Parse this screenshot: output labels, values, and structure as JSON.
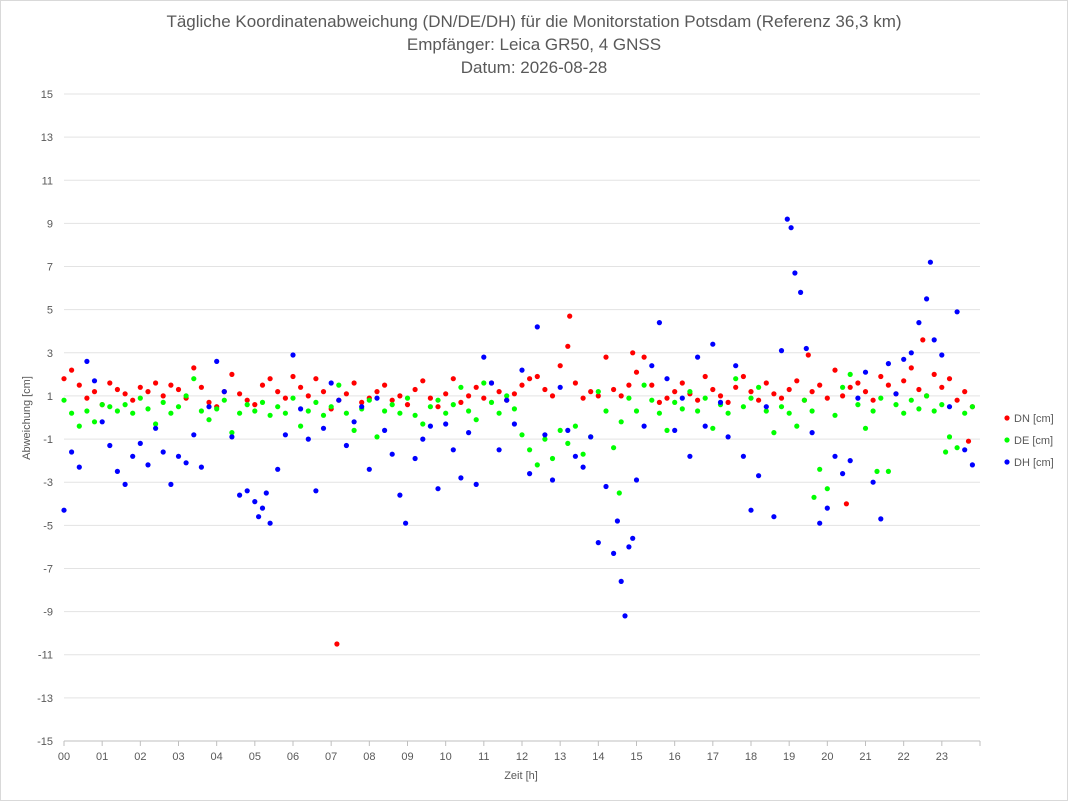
{
  "chart_data": {
    "type": "scatter",
    "title_lines": [
      "Tägliche Koordinatenabweichung (DN/DE/DH) für die Monitorstation Potsdam (Referenz 36,3 km)",
      "Empfänger: Leica GR50, 4 GNSS",
      "Datum: 2026-08-28"
    ],
    "xlabel": "Zeit [h]",
    "ylabel": "Abweichung [cm]",
    "x_tick_labels": [
      "00",
      "01",
      "02",
      "03",
      "04",
      "05",
      "06",
      "07",
      "08",
      "09",
      "10",
      "11",
      "12",
      "13",
      "14",
      "15",
      "16",
      "17",
      "18",
      "19",
      "20",
      "21",
      "22",
      "23"
    ],
    "xlim": [
      0,
      24
    ],
    "ylim": [
      -15,
      15
    ],
    "y_ticks": [
      15,
      13,
      11,
      9,
      7,
      5,
      3,
      1,
      -1,
      -3,
      -5,
      -7,
      -9,
      -11,
      -13,
      -15
    ],
    "grid": "horizontal",
    "legend_position": "right",
    "series": [
      {
        "name": "DN [cm]",
        "color": "#ff0000",
        "x": [
          0.0,
          0.2,
          0.4,
          0.6,
          0.8,
          1.0,
          1.2,
          1.4,
          1.6,
          1.8,
          2.0,
          2.2,
          2.4,
          2.6,
          2.8,
          3.0,
          3.2,
          3.4,
          3.6,
          3.8,
          4.0,
          4.2,
          4.4,
          4.6,
          4.8,
          5.0,
          5.2,
          5.4,
          5.6,
          5.8,
          6.0,
          6.2,
          6.4,
          6.6,
          6.8,
          7.0,
          7.2,
          7.4,
          7.6,
          7.8,
          8.0,
          8.2,
          8.4,
          8.6,
          8.8,
          9.0,
          9.2,
          9.4,
          9.6,
          9.8,
          10.0,
          10.2,
          10.4,
          10.6,
          10.8,
          11.0,
          11.2,
          11.4,
          11.6,
          11.8,
          12.0,
          12.2,
          12.4,
          12.6,
          12.8,
          13.0,
          13.2,
          13.4,
          13.6,
          13.8,
          14.0,
          14.2,
          14.4,
          14.6,
          14.8,
          15.0,
          15.2,
          15.4,
          15.6,
          15.8,
          16.0,
          16.2,
          16.4,
          16.6,
          16.8,
          17.0,
          17.2,
          17.4,
          17.6,
          17.8,
          18.0,
          18.2,
          18.4,
          18.6,
          18.8,
          19.0,
          19.2,
          19.4,
          19.6,
          19.8,
          20.0,
          20.2,
          20.4,
          20.6,
          20.8,
          21.0,
          21.2,
          21.4,
          21.6,
          21.8,
          22.0,
          22.2,
          22.4,
          22.6,
          22.8,
          23.0,
          23.2,
          23.4,
          23.6,
          23.8,
          7.15,
          13.25,
          14.9,
          19.5,
          20.5,
          22.5,
          23.7
        ],
        "y": [
          1.8,
          2.2,
          1.5,
          0.9,
          1.2,
          0.6,
          1.6,
          1.3,
          1.1,
          0.8,
          1.4,
          1.2,
          1.6,
          1.0,
          1.5,
          1.3,
          0.9,
          2.3,
          1.4,
          0.7,
          0.5,
          1.2,
          2.0,
          1.1,
          0.8,
          0.6,
          1.5,
          1.8,
          1.2,
          0.9,
          1.9,
          1.4,
          1.0,
          1.8,
          1.2,
          0.4,
          0.8,
          1.1,
          1.6,
          0.7,
          0.9,
          1.2,
          1.5,
          0.8,
          1.0,
          0.6,
          1.3,
          1.7,
          0.9,
          0.5,
          1.1,
          1.8,
          0.7,
          1.0,
          1.4,
          0.9,
          1.6,
          1.2,
          0.8,
          1.1,
          1.5,
          1.8,
          1.9,
          1.3,
          1.0,
          2.4,
          3.3,
          1.6,
          0.9,
          1.2,
          1.0,
          2.8,
          1.3,
          1.0,
          1.5,
          2.1,
          2.8,
          1.5,
          0.7,
          0.9,
          1.2,
          1.6,
          1.1,
          0.8,
          1.9,
          1.3,
          1.0,
          0.7,
          1.4,
          1.9,
          1.2,
          0.8,
          1.6,
          1.1,
          0.9,
          1.3,
          1.7,
          0.8,
          1.2,
          1.5,
          0.9,
          2.2,
          1.0,
          1.4,
          1.6,
          1.2,
          0.8,
          1.9,
          1.5,
          1.1,
          1.7,
          2.3,
          1.3,
          1.0,
          2.0,
          1.4,
          1.8,
          0.8,
          1.2,
          0.5,
          -10.5,
          4.7,
          3.0,
          2.9,
          -4.0,
          3.6,
          -1.1
        ]
      },
      {
        "name": "DE [cm]",
        "color": "#00ff00",
        "x": [
          0.0,
          0.2,
          0.4,
          0.6,
          0.8,
          1.0,
          1.2,
          1.4,
          1.6,
          1.8,
          2.0,
          2.2,
          2.4,
          2.6,
          2.8,
          3.0,
          3.2,
          3.4,
          3.6,
          3.8,
          4.0,
          4.2,
          4.4,
          4.6,
          4.8,
          5.0,
          5.2,
          5.4,
          5.6,
          5.8,
          6.0,
          6.2,
          6.4,
          6.6,
          6.8,
          7.0,
          7.2,
          7.4,
          7.6,
          7.8,
          8.0,
          8.2,
          8.4,
          8.6,
          8.8,
          9.0,
          9.2,
          9.4,
          9.6,
          9.8,
          10.0,
          10.2,
          10.4,
          10.6,
          10.8,
          11.0,
          11.2,
          11.4,
          11.6,
          11.8,
          12.0,
          12.2,
          12.4,
          12.6,
          12.8,
          13.0,
          13.2,
          13.4,
          13.6,
          13.8,
          14.0,
          14.2,
          14.4,
          14.6,
          14.8,
          15.0,
          15.2,
          15.4,
          15.6,
          15.8,
          16.0,
          16.2,
          16.4,
          16.6,
          16.8,
          17.0,
          17.2,
          17.4,
          17.6,
          17.8,
          18.0,
          18.2,
          18.4,
          18.6,
          18.8,
          19.0,
          19.2,
          19.4,
          19.6,
          19.8,
          20.0,
          20.2,
          20.4,
          20.6,
          20.8,
          21.0,
          21.2,
          21.4,
          21.6,
          21.8,
          22.0,
          22.2,
          22.4,
          22.6,
          22.8,
          23.0,
          23.2,
          23.4,
          23.6,
          23.8,
          14.55,
          19.65,
          21.3,
          23.1
        ],
        "y": [
          0.8,
          0.2,
          -0.4,
          0.3,
          -0.2,
          0.6,
          0.5,
          0.3,
          0.6,
          0.2,
          0.9,
          0.4,
          -0.3,
          0.7,
          0.2,
          0.5,
          1.0,
          1.8,
          0.3,
          -0.1,
          0.4,
          0.8,
          -0.7,
          0.2,
          0.6,
          0.3,
          0.7,
          0.1,
          0.5,
          0.2,
          0.9,
          -0.4,
          0.3,
          0.7,
          0.1,
          0.5,
          1.5,
          0.2,
          -0.6,
          0.4,
          0.8,
          -0.9,
          0.3,
          0.6,
          0.2,
          0.9,
          0.1,
          -0.3,
          0.5,
          0.8,
          0.2,
          0.6,
          1.4,
          0.3,
          -0.1,
          1.6,
          0.7,
          0.2,
          1.0,
          0.4,
          -0.8,
          -1.5,
          -2.2,
          -1.0,
          -1.9,
          -0.6,
          -1.2,
          -0.4,
          -1.7,
          -0.9,
          1.2,
          0.3,
          -1.4,
          -0.2,
          0.9,
          0.3,
          1.5,
          0.8,
          0.2,
          -0.6,
          0.7,
          0.4,
          1.2,
          0.3,
          0.9,
          -0.5,
          0.6,
          0.2,
          1.8,
          0.5,
          0.9,
          1.4,
          0.3,
          -0.7,
          0.5,
          0.2,
          -0.4,
          0.8,
          0.3,
          -2.4,
          -3.3,
          0.1,
          1.4,
          2.0,
          0.6,
          -0.5,
          0.3,
          0.9,
          -2.5,
          0.6,
          0.2,
          0.8,
          0.4,
          1.0,
          0.3,
          0.6,
          -0.9,
          -1.4,
          0.2,
          0.5,
          -3.5,
          -3.7,
          -2.5,
          -1.6
        ]
      },
      {
        "name": "DH [cm]",
        "color": "#0000ff",
        "x": [
          0.0,
          0.2,
          0.4,
          0.6,
          0.8,
          1.0,
          1.2,
          1.4,
          1.6,
          1.8,
          2.0,
          2.2,
          2.4,
          2.6,
          2.8,
          3.0,
          3.2,
          3.4,
          3.6,
          3.8,
          4.0,
          4.2,
          4.4,
          4.6,
          4.8,
          5.0,
          5.1,
          5.2,
          5.3,
          5.4,
          5.6,
          5.8,
          6.0,
          6.2,
          6.4,
          6.6,
          6.8,
          7.0,
          7.2,
          7.4,
          7.6,
          7.8,
          8.0,
          8.2,
          8.4,
          8.6,
          8.8,
          8.95,
          9.2,
          9.4,
          9.6,
          9.8,
          10.0,
          10.2,
          10.4,
          10.6,
          10.8,
          11.0,
          11.2,
          11.4,
          11.6,
          11.8,
          12.0,
          12.2,
          12.4,
          12.6,
          12.8,
          13.0,
          13.2,
          13.4,
          13.6,
          13.8,
          14.0,
          14.2,
          14.4,
          14.5,
          14.6,
          14.7,
          14.8,
          14.9,
          15.0,
          15.2,
          15.4,
          15.6,
          15.8,
          16.0,
          16.2,
          16.4,
          16.6,
          16.8,
          17.0,
          17.2,
          17.4,
          17.6,
          17.8,
          18.0,
          18.2,
          18.4,
          18.6,
          18.8,
          18.95,
          19.05,
          19.15,
          19.3,
          19.45,
          19.6,
          19.8,
          20.0,
          20.2,
          20.4,
          20.6,
          20.8,
          21.0,
          21.2,
          21.4,
          21.6,
          21.8,
          22.0,
          22.2,
          22.4,
          22.6,
          22.7,
          22.8,
          23.0,
          23.2,
          23.4,
          23.6,
          23.8
        ],
        "y": [
          -4.3,
          -1.6,
          -2.3,
          2.6,
          1.7,
          -0.2,
          -1.3,
          -2.5,
          -3.1,
          -1.8,
          -1.2,
          -2.2,
          -0.5,
          -1.6,
          -3.1,
          -1.8,
          -2.1,
          -0.8,
          -2.3,
          0.5,
          2.6,
          1.2,
          -0.9,
          -3.6,
          -3.4,
          -3.9,
          -4.6,
          -4.2,
          -3.5,
          -4.9,
          -2.4,
          -0.8,
          2.9,
          0.4,
          -1.0,
          -3.4,
          -0.5,
          1.6,
          0.8,
          -1.3,
          -0.2,
          0.5,
          -2.4,
          0.9,
          -0.6,
          -1.7,
          -3.6,
          -4.9,
          -1.9,
          -1.0,
          -0.4,
          -3.3,
          -0.3,
          -1.5,
          -2.8,
          -0.7,
          -3.1,
          2.8,
          1.6,
          -1.5,
          0.8,
          -0.3,
          2.2,
          -2.6,
          4.2,
          -0.8,
          -2.9,
          1.4,
          -0.6,
          -1.8,
          -2.3,
          -0.9,
          -5.8,
          -3.2,
          -6.3,
          -4.8,
          -7.6,
          -9.2,
          -6.0,
          -5.6,
          -2.9,
          -0.4,
          2.4,
          4.4,
          1.8,
          -0.6,
          0.9,
          -1.8,
          2.8,
          -0.4,
          3.4,
          0.7,
          -0.9,
          2.4,
          -1.8,
          -4.3,
          -2.7,
          0.5,
          -4.6,
          3.1,
          9.2,
          8.8,
          6.7,
          5.8,
          3.2,
          -0.7,
          -4.9,
          -4.2,
          -1.8,
          -2.6,
          -2.0,
          0.9,
          2.1,
          -3.0,
          -4.7,
          2.5,
          1.1,
          2.7,
          3.0,
          4.4,
          5.5,
          7.2,
          3.6,
          2.9,
          0.5,
          4.9,
          -1.5,
          -2.2
        ]
      }
    ]
  }
}
